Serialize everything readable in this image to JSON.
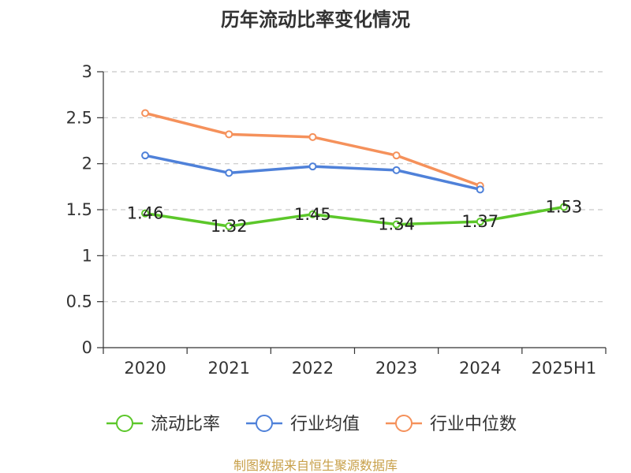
{
  "chart_data": {
    "type": "line",
    "title": "历年流动比率变化情况",
    "categories": [
      "2020",
      "2021",
      "2022",
      "2023",
      "2024",
      "2025H1"
    ],
    "ylim": [
      0,
      3
    ],
    "yticks": [
      "0",
      "0.5",
      "1",
      "1.5",
      "2",
      "2.5",
      "3"
    ],
    "grid": "horizontal-dashed",
    "legend_position": "bottom",
    "series": [
      {
        "name": "流动比率",
        "color": "#5cc72a",
        "values": [
          1.46,
          1.32,
          1.45,
          1.34,
          1.37,
          1.53
        ],
        "labels": [
          "1.46",
          "1.32",
          "1.45",
          "1.34",
          "1.37",
          "1.53"
        ]
      },
      {
        "name": "行业均值",
        "color": "#4f81d9",
        "values": [
          2.09,
          1.9,
          1.97,
          1.93,
          1.72,
          null
        ]
      },
      {
        "name": "行业中位数",
        "color": "#f5915b",
        "values": [
          2.55,
          2.32,
          2.29,
          2.09,
          1.76,
          null
        ]
      }
    ]
  },
  "source": "制图数据来自恒生聚源数据库"
}
